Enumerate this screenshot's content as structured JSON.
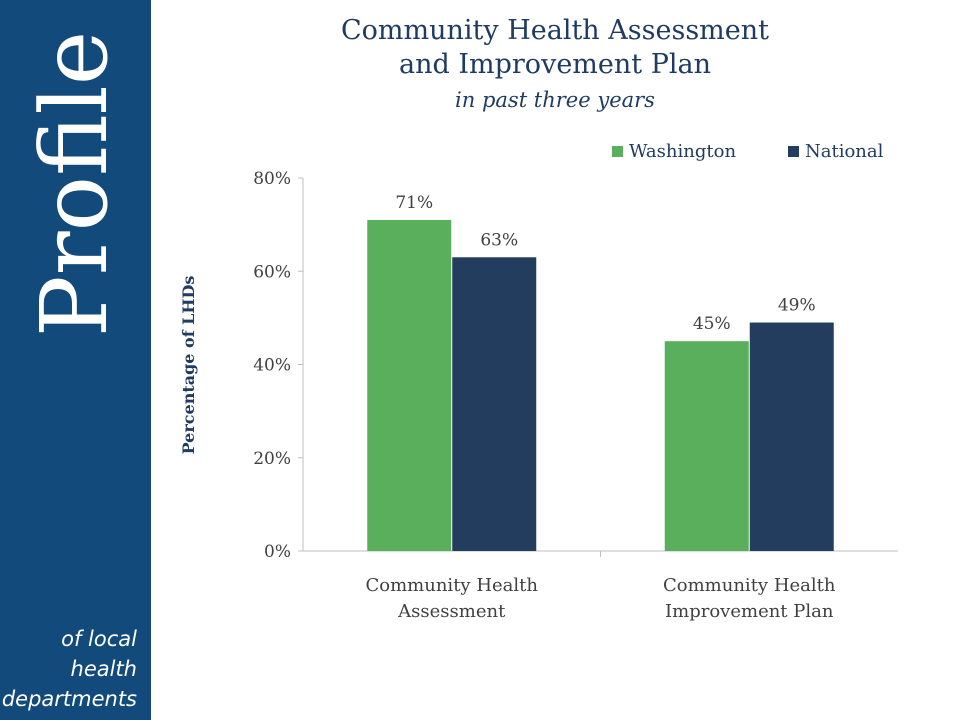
{
  "sidebar": {
    "brand": "Profile",
    "tagline": [
      "of local",
      "health",
      "departments"
    ],
    "color": "#134a7c"
  },
  "chart_data": {
    "type": "bar",
    "title_lines": [
      "Community Health Assessment",
      "and Improvement Plan"
    ],
    "subtitle": "in past three years",
    "ylabel": "Percentage of LHDs",
    "xlabel": "",
    "ylim": [
      0,
      80
    ],
    "yticks": [
      0,
      20,
      40,
      60,
      80
    ],
    "ytick_labels": [
      "0%",
      "20%",
      "40%",
      "60%",
      "80%"
    ],
    "categories": [
      [
        "Community Health",
        "Assessment"
      ],
      [
        "Community Health",
        "Improvement Plan"
      ]
    ],
    "series": [
      {
        "name": "Washington",
        "values": [
          71,
          45
        ],
        "labels": [
          "71%",
          "45%"
        ],
        "color": "#5aaf5c"
      },
      {
        "name": "National",
        "values": [
          63,
          49
        ],
        "labels": [
          "63%",
          "49%"
        ],
        "color": "#223d5e"
      }
    ],
    "legend_position": "top-right",
    "grid": false
  }
}
